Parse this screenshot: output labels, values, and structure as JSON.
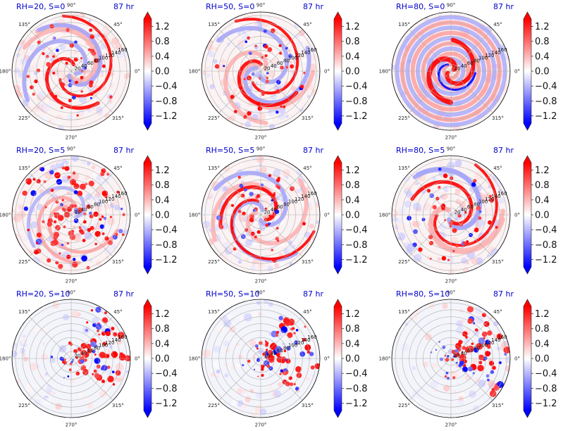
{
  "chart_data": [
    {
      "type": "heatmap",
      "title": "RH=20, S=0",
      "time_label": "87 hr",
      "structure": "spiral",
      "seed": 11
    },
    {
      "type": "heatmap",
      "title": "RH=50, S=0",
      "time_label": "87 hr",
      "structure": "spiral",
      "seed": 23
    },
    {
      "type": "heatmap",
      "title": "RH=80, S=0",
      "time_label": "87 hr",
      "structure": "ring",
      "seed": 37
    },
    {
      "type": "heatmap",
      "title": "RH=20, S=5",
      "time_label": "87 hr",
      "structure": "cells",
      "seed": 41
    },
    {
      "type": "heatmap",
      "title": "RH=50, S=5",
      "time_label": "87 hr",
      "structure": "spiral",
      "seed": 53
    },
    {
      "type": "heatmap",
      "title": "RH=80, S=5",
      "time_label": "87 hr",
      "structure": "spiral",
      "seed": 67
    },
    {
      "type": "heatmap",
      "title": "RH=20, S=10",
      "time_label": "87 hr",
      "structure": "sheared",
      "seed": 71
    },
    {
      "type": "heatmap",
      "title": "RH=50, S=10",
      "time_label": "87 hr",
      "structure": "sheared",
      "seed": 83
    },
    {
      "type": "heatmap",
      "title": "RH=80, S=10",
      "time_label": "87 hr",
      "structure": "sheared",
      "seed": 97
    }
  ],
  "polar_axes": {
    "angle_labels": [
      "0°",
      "45°",
      "90°",
      "135°",
      "180°",
      "225°",
      "270°",
      "315°"
    ],
    "angles_deg": [
      0,
      45,
      90,
      135,
      180,
      225,
      270,
      315
    ],
    "radial_labels": [
      "20",
      "40",
      "60",
      "80",
      "100",
      "120",
      "140",
      "160"
    ],
    "radial_values": [
      20,
      40,
      60,
      80,
      100,
      120,
      140,
      160
    ],
    "radial_max": 170,
    "radial_label_angle_deg": 22.5
  },
  "colorbar": {
    "cmap": "bwr",
    "vmin": -1.4,
    "vmax": 1.4,
    "ticks": [
      -1.2,
      -0.8,
      -0.4,
      0.0,
      0.4,
      0.8,
      1.2
    ],
    "tick_labels": [
      "−1.2",
      "−0.8",
      "−0.4",
      "0.0",
      "0.4",
      "0.8",
      "1.2"
    ],
    "extend": "both"
  },
  "colors": {
    "title": "#0000cc",
    "negative": "#0000ff",
    "zero": "#ffffff",
    "positive": "#ff0000"
  }
}
